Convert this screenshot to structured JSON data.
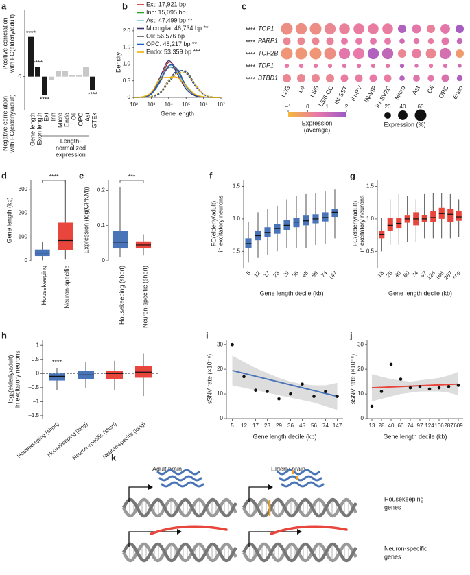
{
  "chart_data": [
    {
      "type": "bar",
      "panel": "a",
      "categories": [
        "Gene length",
        "Exon length",
        "Ext",
        "Inh",
        "Micro",
        "Endo",
        "Oli",
        "OPC",
        "Ast",
        "GTEx"
      ],
      "values": [
        0.6,
        0.15,
        -0.28,
        -0.05,
        0.08,
        0.08,
        0.02,
        0.02,
        0.15,
        -0.2
      ],
      "colors": [
        "#1a1a1a",
        "#1a1a1a",
        "#1a1a1a",
        "#c8c8c8",
        "#c8c8c8",
        "#c8c8c8",
        "#c8c8c8",
        "#c8c8c8",
        "#c8c8c8",
        "#1a1a1a"
      ],
      "significance": [
        "****",
        "****",
        "****",
        null,
        null,
        null,
        null,
        null,
        null,
        "****"
      ],
      "ylim": [
        -0.5,
        1.0
      ],
      "yticks": [
        0
      ],
      "ylabel_positive": [
        "Positive correlation",
        "with FC(elderly/adult)"
      ],
      "ylabel_negative": [
        "Negative correlation",
        "with FC(elderly/adult)"
      ],
      "group_label": [
        "Length-",
        "normalized",
        "expression"
      ]
    },
    {
      "type": "line",
      "panel": "b",
      "ylabel": "Density",
      "xlabel": "Gene length",
      "xlog": true,
      "x": [
        100,
        316,
        1000,
        3162,
        10000,
        31623,
        100000,
        316228,
        1000000,
        3162278,
        10000000
      ],
      "xlim": [
        100,
        10000000
      ],
      "xticks": [
        {
          "value": 100,
          "label": "10²"
        },
        {
          "value": 1000,
          "label": "10³"
        },
        {
          "value": 10000,
          "label": "10⁴"
        },
        {
          "value": 100000,
          "label": "10⁵"
        },
        {
          "value": 1000000,
          "label": "10⁶"
        },
        {
          "value": 10000000,
          "label": "10⁷"
        }
      ],
      "ylim": [
        0,
        2.1
      ],
      "yticks": [
        0,
        0.5,
        {
          "value": 1,
          "label": "1.0"
        },
        1.5,
        {
          "value": 2,
          "label": "2.0"
        }
      ],
      "series": [
        {
          "name": "Ext: 17,921 bp",
          "color": "#d62728",
          "values": [
            0,
            0.01,
            0.1,
            0.5,
            1.05,
            0.8,
            0.3,
            0.06,
            0.01,
            0,
            0
          ],
          "values_dashed": [
            0,
            0,
            0.02,
            0.12,
            0.45,
            0.75,
            0.78,
            0.4,
            0.1,
            0.01,
            0
          ]
        },
        {
          "name": "Inh: 15,095 bp",
          "color": "#2ca02c",
          "values": [
            0,
            0.01,
            0.1,
            0.5,
            0.95,
            0.85,
            0.35,
            0.08,
            0.01,
            0,
            0
          ],
          "values_dashed": [
            0,
            0,
            0.02,
            0.13,
            0.47,
            0.76,
            0.77,
            0.4,
            0.1,
            0.01,
            0
          ]
        },
        {
          "name": "Ast: 47,499 bp **",
          "color": "#7fc8e8",
          "values": [
            0,
            0.01,
            0.12,
            0.55,
            0.9,
            0.75,
            0.3,
            0.07,
            0.01,
            0,
            0
          ],
          "values_dashed": [
            0,
            0,
            0.03,
            0.15,
            0.5,
            0.78,
            0.74,
            0.38,
            0.09,
            0.01,
            0
          ]
        },
        {
          "name": "Microglia: 46,734 bp **",
          "color": "#3b2e6e",
          "values": [
            0,
            0.01,
            0.12,
            0.6,
            1.1,
            0.7,
            0.25,
            0.05,
            0.01,
            0,
            0
          ],
          "values_dashed": [
            0,
            0,
            0.03,
            0.16,
            0.52,
            0.8,
            0.72,
            0.36,
            0.09,
            0.01,
            0
          ]
        },
        {
          "name": "Oli: 56,576 bp",
          "color": "#555555",
          "values": [
            0,
            0.01,
            0.1,
            0.5,
            0.9,
            0.8,
            0.35,
            0.08,
            0.01,
            0,
            0
          ],
          "values_dashed": [
            0,
            0,
            0.02,
            0.12,
            0.44,
            0.74,
            0.79,
            0.42,
            0.1,
            0.01,
            0
          ]
        },
        {
          "name": "OPC: 48,217 bp **",
          "color": "#1f5fbf",
          "values": [
            0,
            0.01,
            0.1,
            0.45,
            0.95,
            0.85,
            0.35,
            0.08,
            0.01,
            0,
            0
          ],
          "values_dashed": [
            0,
            0,
            0.02,
            0.14,
            0.48,
            0.77,
            0.76,
            0.39,
            0.1,
            0.01,
            0
          ]
        },
        {
          "name": "Endo: 53,359 bp ***",
          "color": "#f0b000",
          "values": [
            0,
            0.02,
            0.15,
            0.55,
            0.6,
            0.6,
            0.35,
            0.1,
            0.02,
            0,
            0
          ],
          "values_dashed": [
            0,
            0,
            0.03,
            0.17,
            0.5,
            0.72,
            0.73,
            0.4,
            0.11,
            0.01,
            0
          ]
        }
      ]
    },
    {
      "type": "dot",
      "panel": "c",
      "genes": [
        "TOP1",
        "PARP1",
        "TOP2B",
        "TDP1",
        "BTBD1"
      ],
      "significance": [
        "****",
        "****",
        "****",
        "****",
        "****"
      ],
      "categories": [
        "L2/3",
        "L4",
        "L5/6",
        "L5/6-CC",
        "IN-SST",
        "IN-PV",
        "IN-VIP",
        "IN-SV2C",
        "Micro",
        "Ast",
        "Oli",
        "OPC",
        "Endo"
      ],
      "values": [
        [
          0,
          0,
          0,
          0.2,
          0.3,
          0.4,
          0.4,
          0.4,
          1.6,
          0.6,
          0.3,
          0.6,
          1.8
        ],
        [
          0.2,
          0.2,
          0.2,
          0.3,
          0.5,
          0.5,
          0.6,
          0.5,
          1.0,
          0.6,
          0.4,
          0.6,
          1.2
        ],
        [
          -0.2,
          -0.2,
          -0.2,
          0,
          0.6,
          0.5,
          1.6,
          1.3,
          0.2,
          0.4,
          0.2,
          0.9,
          -0.3
        ],
        [
          0.5,
          0.5,
          0.5,
          0.5,
          0.6,
          0.6,
          0.6,
          0.6,
          1.5,
          0.8,
          0.5,
          0.7,
          1.0
        ],
        [
          0.2,
          0.2,
          0.2,
          0.2,
          0.4,
          0.4,
          0.5,
          0.4,
          1.5,
          0.7,
          0.6,
          0.8,
          1.6
        ]
      ],
      "sizes": [
        [
          60,
          55,
          60,
          55,
          50,
          50,
          50,
          50,
          30,
          35,
          30,
          40,
          30
        ],
        [
          25,
          25,
          25,
          25,
          20,
          20,
          20,
          20,
          12,
          15,
          15,
          25,
          15
        ],
        [
          60,
          60,
          60,
          60,
          55,
          55,
          55,
          55,
          30,
          40,
          45,
          55,
          30
        ],
        [
          8,
          8,
          8,
          8,
          8,
          8,
          8,
          8,
          8,
          6,
          8,
          8,
          6
        ],
        [
          30,
          30,
          30,
          30,
          25,
          25,
          25,
          25,
          12,
          20,
          18,
          25,
          15
        ]
      ],
      "colorscale": [
        "#f5b83d",
        "#e879a8",
        "#9b59c6"
      ],
      "colorbar_lim": [
        -1,
        2
      ],
      "colorbar_ticks": [
        {
          "value": -1,
          "label": "−1"
        },
        0,
        1,
        2
      ],
      "colorbar_label": [
        "Expression",
        "(average)"
      ],
      "size_ticks": [
        20,
        40,
        60
      ],
      "size_label": "Expression (%)"
    },
    {
      "type": "box",
      "panel": "d",
      "ylabel": "Gene length (kb)",
      "categories": [
        "Housekeeping",
        "Neuron-specific"
      ],
      "colors": [
        "#4a74b8",
        "#e8453c"
      ],
      "boxes": [
        {
          "low": 2,
          "q1": 20,
          "median": 33,
          "q3": 47,
          "high": 80
        },
        {
          "low": 5,
          "q1": 45,
          "median": 85,
          "q3": 160,
          "high": 340
        }
      ],
      "ylim": [
        0,
        340
      ],
      "yticks": [
        0,
        100,
        200,
        300
      ],
      "significance": "****"
    },
    {
      "type": "box",
      "panel": "e",
      "ylabel": "Expression (log(CPKM))",
      "categories": [
        "Housekeeping (short)",
        "Neuron-specific (short)"
      ],
      "colors": [
        "#4a74b8",
        "#e8453c"
      ],
      "boxes": [
        {
          "low": 0.01,
          "q1": 0.035,
          "median": 0.053,
          "q3": 0.085,
          "high": 0.21
        },
        {
          "low": 0.015,
          "q1": 0.035,
          "median": 0.045,
          "q3": 0.055,
          "high": 0.075
        }
      ],
      "ylim": [
        0,
        0.23
      ],
      "yticks": [
        0,
        0.1,
        0.2
      ],
      "significance": "***"
    },
    {
      "type": "box",
      "panel": "f",
      "ylabel": [
        "FC(elderly/adult)",
        "in excitatory neurons"
      ],
      "xlabel": "Gene length decile (kb)",
      "categories": [
        "5",
        "12",
        "17",
        "23",
        "29",
        "36",
        "45",
        "56",
        "74",
        "147"
      ],
      "color": "#4a74b8",
      "boxes": [
        {
          "low": 0.33,
          "q1": 0.55,
          "median": 0.62,
          "q3": 0.7,
          "high": 0.95
        },
        {
          "low": 0.4,
          "q1": 0.67,
          "median": 0.74,
          "q3": 0.82,
          "high": 1.1
        },
        {
          "low": 0.45,
          "q1": 0.72,
          "median": 0.79,
          "q3": 0.87,
          "high": 1.15
        },
        {
          "low": 0.5,
          "q1": 0.77,
          "median": 0.85,
          "q3": 0.92,
          "high": 1.2
        },
        {
          "low": 0.55,
          "q1": 0.83,
          "median": 0.9,
          "q3": 0.98,
          "high": 1.3
        },
        {
          "low": 0.55,
          "q1": 0.87,
          "median": 0.95,
          "q3": 1.02,
          "high": 1.35
        },
        {
          "low": 0.55,
          "q1": 0.9,
          "median": 0.97,
          "q3": 1.05,
          "high": 1.38
        },
        {
          "low": 0.6,
          "q1": 0.93,
          "median": 1.0,
          "q3": 1.07,
          "high": 1.4
        },
        {
          "low": 0.62,
          "q1": 0.96,
          "median": 1.02,
          "q3": 1.1,
          "high": 1.42
        },
        {
          "low": 0.7,
          "q1": 1.03,
          "median": 1.1,
          "q3": 1.15,
          "high": 1.45
        }
      ],
      "ylim": [
        0.25,
        1.6
      ],
      "yticks": [
        0.5,
        {
          "value": 1,
          "label": "1.0"
        },
        1.5
      ]
    },
    {
      "type": "box",
      "panel": "g",
      "ylabel": [
        "FC(elderly/adult)",
        "in excitatory neurons"
      ],
      "xlabel": "Gene length decile (kb)",
      "categories": [
        "13",
        "28",
        "40",
        "60",
        "74",
        "97",
        "124",
        "166",
        "287",
        "609"
      ],
      "color": "#e8453c",
      "boxes": [
        {
          "low": 0.5,
          "q1": 0.7,
          "median": 0.76,
          "q3": 0.82,
          "high": 1.02
        },
        {
          "low": 0.6,
          "q1": 0.82,
          "median": 0.9,
          "q3": 1.02,
          "high": 1.3
        },
        {
          "low": 0.6,
          "q1": 0.85,
          "median": 0.93,
          "q3": 1.02,
          "high": 1.38
        },
        {
          "low": 0.65,
          "q1": 0.94,
          "median": 1.0,
          "q3": 1.05,
          "high": 1.35
        },
        {
          "low": 0.65,
          "q1": 0.9,
          "median": 1.0,
          "q3": 1.1,
          "high": 1.3
        },
        {
          "low": 0.7,
          "q1": 0.95,
          "median": 1.0,
          "q3": 1.06,
          "high": 1.38
        },
        {
          "low": 0.7,
          "q1": 0.95,
          "median": 1.02,
          "q3": 1.12,
          "high": 1.4
        },
        {
          "low": 0.7,
          "q1": 1.0,
          "median": 1.08,
          "q3": 1.17,
          "high": 1.4
        },
        {
          "low": 0.7,
          "q1": 0.95,
          "median": 1.07,
          "q3": 1.15,
          "high": 1.38
        },
        {
          "low": 0.72,
          "q1": 0.97,
          "median": 1.03,
          "q3": 1.12,
          "high": 1.3
        }
      ],
      "ylim": [
        0.25,
        1.6
      ],
      "yticks": [
        0.5,
        {
          "value": 1,
          "label": "1.0"
        },
        1.5
      ]
    },
    {
      "type": "box",
      "panel": "h",
      "ylabel": [
        "log₂(elderly/adult)",
        "in excitatory neurons"
      ],
      "categories": [
        "Housekeeping (short)",
        "Housekeeping (long)",
        "Neuron-specific (short)",
        "Neuron-specific (long)"
      ],
      "colors": [
        "#4a74b8",
        "#4a74b8",
        "#e8453c",
        "#e8453c"
      ],
      "boxes": [
        {
          "low": -0.6,
          "q1": -0.25,
          "median": -0.1,
          "q3": 0.0,
          "high": 0.2
        },
        {
          "low": -0.5,
          "q1": -0.2,
          "median": -0.05,
          "q3": 0.1,
          "high": 0.4
        },
        {
          "low": -0.6,
          "q1": -0.2,
          "median": 0,
          "q3": 0.1,
          "high": 0.45
        },
        {
          "low": -0.8,
          "q1": -0.15,
          "median": 0.05,
          "q3": 0.25,
          "high": 0.7
        }
      ],
      "ylim": [
        -1.6,
        1.2
      ],
      "yticks": [
        {
          "value": -1.5,
          "label": "–1.5"
        },
        {
          "value": -1,
          "label": "–1"
        },
        {
          "value": -0.5,
          "label": "–0.5"
        },
        0,
        0.5,
        1
      ],
      "significance": "****",
      "zero_line": true
    },
    {
      "type": "scatter",
      "panel": "i",
      "ylabel": "sSNV rate (×10⁻⁸)",
      "xlabel": "Gene length decile (kb)",
      "categories": [
        "5",
        "12",
        "17",
        "23",
        "29",
        "36",
        "45",
        "56",
        "74",
        "147"
      ],
      "values": [
        30,
        17,
        11.5,
        11,
        8,
        10,
        14,
        9,
        11,
        9
      ],
      "fit": [
        19.5,
        9
      ],
      "fit_color": "#4a74b8",
      "band": {
        "lower": [
          13.5,
          12.5,
          11.5,
          10.5,
          9.5,
          8.5,
          7.5,
          6.5,
          5,
          3.5
        ],
        "upper": [
          25.5,
          23,
          20.5,
          18.5,
          16.5,
          15,
          14,
          13.5,
          13.5,
          14.5
        ]
      },
      "ylim": [
        0,
        32
      ],
      "yticks": [
        0,
        10,
        20,
        30
      ]
    },
    {
      "type": "scatter",
      "panel": "j",
      "ylabel": "sSNV rate (×10⁻⁸)",
      "xlabel": "Gene length decile (kb)",
      "categories": [
        "13",
        "28",
        "40",
        "60",
        "74",
        "97",
        "124",
        "166",
        "287",
        "609"
      ],
      "values": [
        5,
        11,
        22,
        16,
        12.5,
        13,
        12,
        12.5,
        13,
        13.5
      ],
      "fit": [
        12.5,
        14
      ],
      "fit_color": "#e8453c",
      "band": {
        "lower": [
          7,
          8,
          9,
          10,
          10.5,
          11,
          11,
          11,
          10.5,
          9.5
        ],
        "upper": [
          18,
          17,
          16,
          15.5,
          15,
          15.5,
          16,
          16.5,
          17.5,
          19
        ]
      },
      "ylim": [
        0,
        32
      ],
      "yticks": [
        0,
        10,
        20,
        30
      ]
    }
  ],
  "diagram": {
    "panel": "k",
    "adult": "Adult brain",
    "elderly": "Elderly brain",
    "housekeeping": [
      "Housekeeping",
      "genes"
    ],
    "neuron": [
      "Neuron-specific",
      "genes"
    ]
  }
}
